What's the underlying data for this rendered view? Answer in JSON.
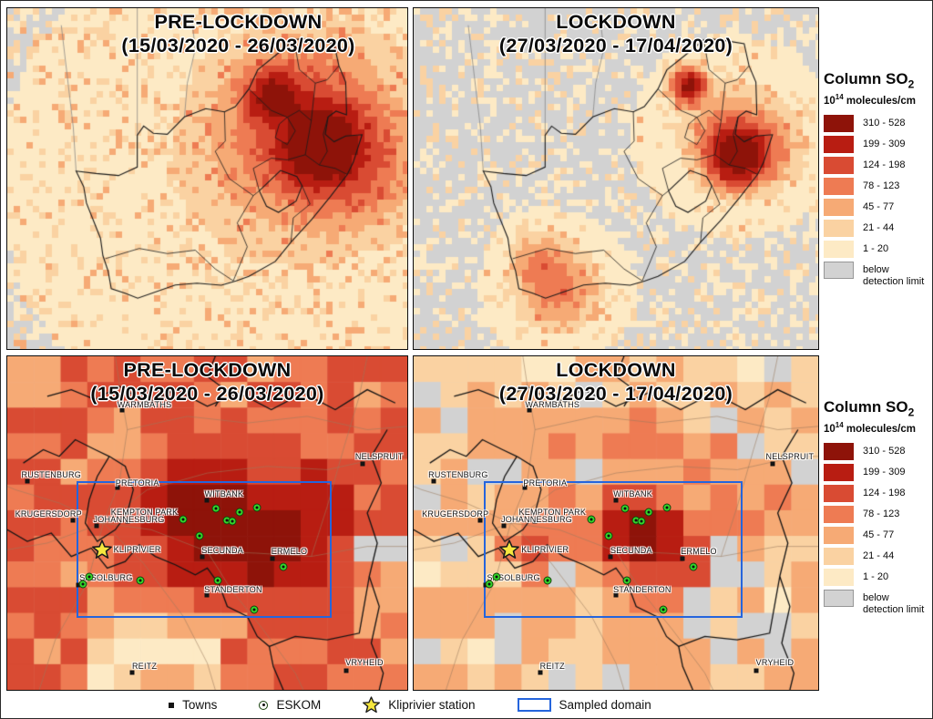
{
  "panels": [
    {
      "title": "PRE-LOCKDOWN",
      "subtitle": "(15/03/2020 - 26/03/2020)"
    },
    {
      "title": "LOCKDOWN",
      "subtitle": "(27/03/2020 - 17/04/2020)"
    },
    {
      "title": "PRE-LOCKDOWN",
      "subtitle": "(15/03/2020 - 26/03/2020)"
    },
    {
      "title": "LOCKDOWN",
      "subtitle": "(27/03/2020 - 17/04/2020)"
    }
  ],
  "legend": {
    "title_main": "Column SO",
    "title_sub": "2",
    "units_base": "10",
    "units_exp": "14",
    "units_rest": " molecules/cm",
    "entries": [
      {
        "label": "310 - 528",
        "color": "#8e1309"
      },
      {
        "label": "199 - 309",
        "color": "#b81d12"
      },
      {
        "label": "124 - 198",
        "color": "#d94b33"
      },
      {
        "label": "78 - 123",
        "color": "#ee7b53"
      },
      {
        "label": "45 - 77",
        "color": "#f6aa75"
      },
      {
        "label": "21 - 44",
        "color": "#fad2a2"
      },
      {
        "label": "1 - 20",
        "color": "#fdeac5"
      },
      {
        "label": "below detection limit",
        "color": "#d2d2d2"
      }
    ]
  },
  "map": {
    "towns": [
      {
        "name": "WARMBATHS",
        "mx": 0.286,
        "my": 0.161,
        "lx": 0.343,
        "ly": 0.145
      },
      {
        "name": "NELSPRUIT",
        "mx": 0.888,
        "my": 0.322,
        "lx": 0.93,
        "ly": 0.3
      },
      {
        "name": "RUSTENBURG",
        "mx": 0.05,
        "my": 0.374,
        "lx": 0.11,
        "ly": 0.356
      },
      {
        "name": "PRETORIA",
        "mx": 0.275,
        "my": 0.393,
        "lx": 0.325,
        "ly": 0.38
      },
      {
        "name": "WITBANK",
        "mx": 0.499,
        "my": 0.432,
        "lx": 0.542,
        "ly": 0.413
      },
      {
        "name": "KRUGERSDORP",
        "mx": 0.165,
        "my": 0.492,
        "lx": 0.103,
        "ly": 0.472
      },
      {
        "name": "KEMPTON PARK",
        "mx": 0.3,
        "my": 0.495,
        "lx": 0.343,
        "ly": 0.467
      },
      {
        "name": "JOHANNESBURG",
        "mx": 0.224,
        "my": 0.508,
        "lx": 0.304,
        "ly": 0.489
      },
      {
        "name": "SECUNDA",
        "mx": 0.487,
        "my": 0.601,
        "lx": 0.538,
        "ly": 0.583
      },
      {
        "name": "ERMELO",
        "mx": 0.664,
        "my": 0.607,
        "lx": 0.705,
        "ly": 0.585
      },
      {
        "name": "SASOLBURG",
        "mx": 0.178,
        "my": 0.686,
        "lx": 0.247,
        "ly": 0.664
      },
      {
        "name": "STANDERTON",
        "mx": 0.499,
        "my": 0.716,
        "lx": 0.565,
        "ly": 0.699
      },
      {
        "name": "REITZ",
        "mx": 0.313,
        "my": 0.948,
        "lx": 0.343,
        "ly": 0.93
      },
      {
        "name": "VRYHEID",
        "mx": 0.847,
        "my": 0.943,
        "lx": 0.893,
        "ly": 0.918
      }
    ],
    "station": {
      "name": "KLIPRIVIER",
      "mx": 0.236,
      "my": 0.579,
      "lx": 0.325,
      "ly": 0.579
    },
    "eskom_points": [
      [
        0.439,
        0.489
      ],
      [
        0.522,
        0.456
      ],
      [
        0.549,
        0.492
      ],
      [
        0.563,
        0.495
      ],
      [
        0.581,
        0.467
      ],
      [
        0.625,
        0.454
      ],
      [
        0.481,
        0.538
      ],
      [
        0.332,
        0.672
      ],
      [
        0.206,
        0.661
      ],
      [
        0.188,
        0.683
      ],
      [
        0.526,
        0.672
      ],
      [
        0.691,
        0.631
      ],
      [
        0.618,
        0.76
      ]
    ],
    "sampled_domain": {
      "x": 0.174,
      "y": 0.374,
      "w": 0.638,
      "h": 0.41
    },
    "colors": {
      "domain_blue": "#2565dd",
      "eskom_green": "#33d42a",
      "star_yellow": "#f6e73e",
      "marker_black": "#141414"
    }
  },
  "heatmap": {
    "thresholds": [
      1,
      21,
      45,
      78,
      124,
      199,
      310
    ],
    "top_left": {
      "seed": 7,
      "cell": 7,
      "gray_prob": 0.42,
      "noise_pow": 2.4,
      "noise_max": 58,
      "hotspots": [
        [
          0.78,
          0.4,
          0.065,
          520
        ],
        [
          0.665,
          0.255,
          0.048,
          310
        ],
        [
          0.75,
          0.345,
          0.16,
          135
        ],
        [
          0.88,
          0.47,
          0.1,
          70
        ],
        [
          0.62,
          0.5,
          0.3,
          22
        ]
      ]
    },
    "top_right": {
      "seed": 13,
      "cell": 7,
      "gray_prob": 0.55,
      "noise_pow": 2.6,
      "noise_max": 45,
      "hotspots": [
        [
          0.795,
          0.425,
          0.05,
          460
        ],
        [
          0.675,
          0.225,
          0.03,
          330
        ],
        [
          0.78,
          0.37,
          0.1,
          75
        ],
        [
          0.355,
          0.815,
          0.075,
          95
        ],
        [
          0.3,
          0.73,
          0.05,
          55
        ],
        [
          0.88,
          0.4,
          0.07,
          40
        ]
      ]
    },
    "bottom_left": {
      "seed": 21,
      "cols": 15,
      "rows": 13,
      "gray_prob": 0.03,
      "base_min": 68,
      "base_range": 105,
      "hotspots": [
        [
          0.55,
          0.5,
          0.13,
          270
        ],
        [
          0.47,
          0.455,
          0.07,
          230
        ],
        [
          0.7,
          0.575,
          0.095,
          150
        ],
        [
          0.81,
          0.44,
          0.07,
          80
        ],
        [
          0.43,
          0.87,
          0.12,
          -90
        ],
        [
          0.3,
          0.98,
          0.1,
          -75
        ],
        [
          0.05,
          0.05,
          0.08,
          -70
        ],
        [
          0.98,
          0.78,
          0.07,
          -55
        ],
        [
          0.13,
          0.3,
          0.06,
          -45
        ]
      ]
    },
    "bottom_right": {
      "seed": 29,
      "cols": 15,
      "rows": 13,
      "gray_prob": 0.17,
      "base_min": 14,
      "base_range": 60,
      "hotspots": [
        [
          0.545,
          0.55,
          0.058,
          360
        ],
        [
          0.63,
          0.52,
          0.045,
          170
        ],
        [
          0.295,
          0.6,
          0.032,
          175
        ],
        [
          0.665,
          0.625,
          0.06,
          105
        ],
        [
          0.5,
          0.43,
          0.22,
          40
        ],
        [
          0.86,
          0.46,
          0.05,
          55
        ],
        [
          0.75,
          0.35,
          0.06,
          45
        ]
      ]
    }
  },
  "footer": {
    "items": [
      {
        "label": "Towns"
      },
      {
        "label": "ESKOM"
      },
      {
        "label": "Kliprivier station"
      },
      {
        "label": "Sampled domain"
      }
    ]
  }
}
